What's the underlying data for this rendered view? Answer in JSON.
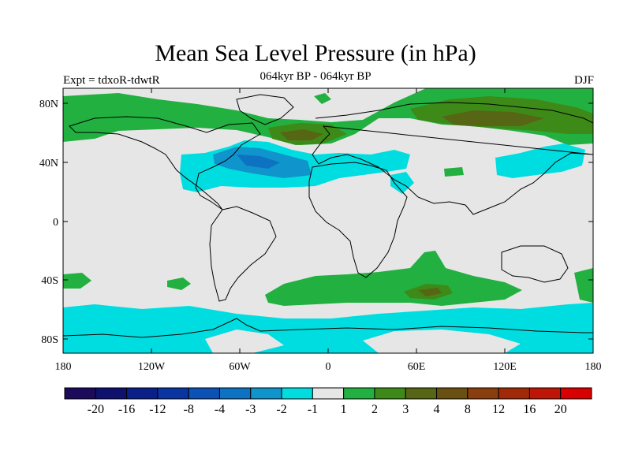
{
  "title": "Mean Sea Level Pressure (in hPa)",
  "subtitle": "064kyr BP - 064kyr BP",
  "left_label": "Expt = tdxoR-tdwtR",
  "right_label": "DJF",
  "lat_ticks": [
    "80N",
    "40N",
    "0",
    "40S",
    "80S"
  ],
  "lon_ticks": [
    "180",
    "120W",
    "60W",
    "0",
    "60E",
    "120E",
    "180"
  ],
  "colorbar": {
    "colors": [
      "#1c0a5a",
      "#0e116e",
      "#0a1f88",
      "#0a35a0",
      "#0b52b4",
      "#0e72c2",
      "#0f94cc",
      "#00dde0",
      "#e6e6e6",
      "#22b040",
      "#3e8a18",
      "#566614",
      "#6a5010",
      "#8a3e0e",
      "#a02a08",
      "#be1606",
      "#d80000"
    ],
    "labels": [
      "-20",
      "-16",
      "-12",
      "-8",
      "-4",
      "-3",
      "-2",
      "-1",
      "1",
      "2",
      "3",
      "4",
      "8",
      "12",
      "16",
      "20"
    ]
  },
  "map": {
    "field_colors": {
      "background": "#e6e6e6",
      "cyan": "#00dde0",
      "mid_blue": "#0f94cc",
      "blue": "#0e72c2",
      "green": "#22b040",
      "dark_green": "#3e8a18",
      "olive": "#566614",
      "brown": "#6a5010"
    }
  }
}
